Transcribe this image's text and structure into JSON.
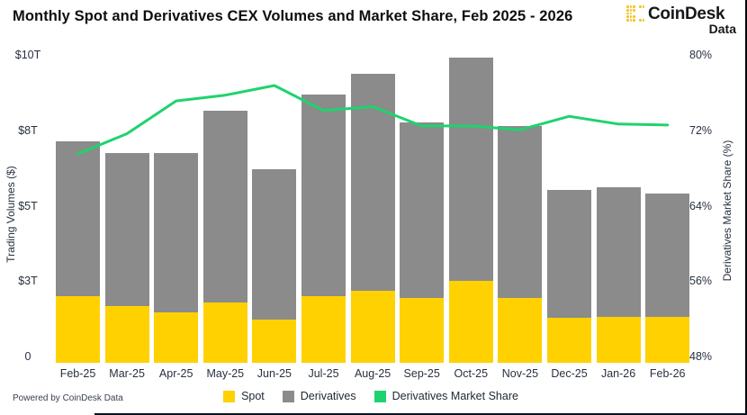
{
  "header": {
    "title": "Monthly Spot and Derivatives CEX Volumes and Market Share, Feb 2025 - 2026",
    "logo": {
      "brand": "CoinDesk",
      "sub": "Data",
      "color": "#f7c325"
    }
  },
  "footer": {
    "powered_by": "Powered by CoinDesk Data"
  },
  "legend": {
    "items": [
      {
        "label": "Spot",
        "color": "#FFD100"
      },
      {
        "label": "Derivatives",
        "color": "#8B8B8B"
      },
      {
        "label": "Derivatives Market Share",
        "color": "#1ED36E"
      }
    ]
  },
  "chart_data": {
    "type": "stacked-bar+line",
    "title": "Monthly Spot and Derivatives CEX Volumes and Market Share, Feb 2025 - 2026",
    "categories": [
      "Feb-25",
      "Mar-25",
      "Apr-25",
      "May-25",
      "Jun-25",
      "Jul-25",
      "Aug-25",
      "Sep-25",
      "Oct-25",
      "Nov-25",
      "Dec-25",
      "Jan-26",
      "Feb-26"
    ],
    "series": [
      {
        "name": "Spot",
        "type": "bar",
        "stack": "volume",
        "color": "#FFD100",
        "unit": "T USD",
        "values": [
          2.15,
          1.85,
          1.65,
          1.95,
          1.4,
          2.15,
          2.35,
          2.1,
          2.65,
          2.1,
          1.45,
          1.5,
          1.5
        ]
      },
      {
        "name": "Derivatives",
        "type": "bar",
        "stack": "volume",
        "color": "#8B8B8B",
        "unit": "T USD",
        "values": [
          5.05,
          4.95,
          5.15,
          6.25,
          4.9,
          6.55,
          7.05,
          5.7,
          7.25,
          5.6,
          4.15,
          4.2,
          4.0
        ]
      },
      {
        "name": "Derivatives Market Share",
        "type": "line",
        "axis": "right",
        "color": "#1ED36E",
        "unit": "%",
        "values": [
          69.5,
          71.6,
          75.0,
          75.6,
          76.6,
          74.0,
          74.4,
          72.4,
          72.4,
          72.0,
          73.4,
          72.6,
          72.5
        ]
      }
    ],
    "left_axis": {
      "label": "Trading Volumes ($)",
      "ticks": [
        "$10T",
        "$8T",
        "$5T",
        "$3T",
        "0"
      ],
      "range": [
        0,
        10
      ]
    },
    "right_axis": {
      "label": "Derivatives Market Share (%)",
      "ticks": [
        "80%",
        "72%",
        "64%",
        "56%",
        "48%"
      ],
      "range": [
        48,
        80
      ]
    },
    "grid": "off",
    "legend_position": "bottom-center"
  }
}
